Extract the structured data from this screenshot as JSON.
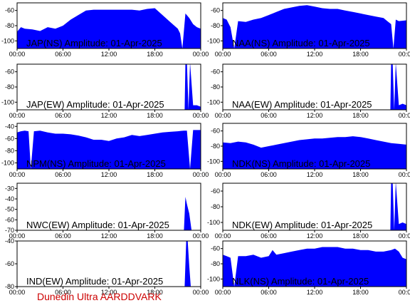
{
  "footer": {
    "label": "Dunedin Ultra AARDDVARK",
    "color": "#cc0000"
  },
  "colors": {
    "fill": "#0000ff",
    "axis": "#000000",
    "background": "#ffffff"
  },
  "x_ticks": [
    "00:00",
    "06:00",
    "12:00",
    "18:00",
    "00:00"
  ],
  "chart_data": [
    {
      "type": "area",
      "title": "JAP(NS) Amplitude: 01-Apr-2025",
      "xlim": [
        "00:00",
        "24:00"
      ],
      "ylim": [
        -110,
        -50
      ],
      "y_ticks": [
        -60,
        -80,
        -100
      ],
      "x_hours": [
        0,
        0.5,
        1,
        2,
        3,
        4,
        5,
        6,
        7,
        8,
        9,
        10,
        11,
        12,
        13,
        14,
        15,
        16,
        17,
        18,
        19,
        20,
        21,
        21.3,
        21.6,
        22,
        22.5,
        23,
        23.5,
        24
      ],
      "values": [
        -88,
        -82,
        -84,
        -85,
        -87,
        -82,
        -84,
        -80,
        -72,
        -66,
        -60,
        -59,
        -59,
        -59,
        -59,
        -59,
        -59,
        -60,
        -58,
        -57,
        -66,
        -75,
        -84,
        -90,
        -110,
        -64,
        -70,
        -78,
        -82,
        -84
      ]
    },
    {
      "type": "area",
      "title": "NAA(NS) Amplitude: 01-Apr-2025",
      "xlim": [
        "00:00",
        "24:00"
      ],
      "ylim": [
        -110,
        -50
      ],
      "y_ticks": [
        -60,
        -80,
        -100
      ],
      "x_hours": [
        0,
        0.5,
        1,
        1.5,
        2,
        3,
        4,
        5,
        6,
        7,
        8,
        9,
        10,
        11,
        12,
        13,
        14,
        15,
        16,
        17,
        18,
        19,
        20,
        21,
        21.5,
        22,
        22.3,
        22.6,
        23,
        24
      ],
      "values": [
        -70,
        -72,
        -82,
        -110,
        -74,
        -75,
        -72,
        -70,
        -66,
        -62,
        -58,
        -56,
        -54,
        -53,
        -55,
        -57,
        -58,
        -58,
        -60,
        -62,
        -64,
        -66,
        -68,
        -70,
        -74,
        -78,
        -110,
        -72,
        -74,
        -73
      ]
    },
    {
      "type": "area",
      "title": "JAP(EW) Amplitude: 01-Apr-2025",
      "xlim": [
        "00:00",
        "24:00"
      ],
      "ylim": [
        -110,
        -50
      ],
      "y_ticks": [
        -60,
        -80,
        -100
      ],
      "x_hours": [
        0,
        21,
        21.5,
        21.9,
        22.0,
        22.2,
        22.4,
        22.6,
        23,
        23.5,
        24
      ],
      "values": [
        -110,
        -110,
        -110,
        -110,
        -48,
        -48,
        -110,
        -48,
        -104,
        -104,
        -106
      ]
    },
    {
      "type": "area",
      "title": "NAA(EW) Amplitude: 01-Apr-2025",
      "xlim": [
        "00:00",
        "24:00"
      ],
      "ylim": [
        -110,
        -50
      ],
      "y_ticks": [
        -60,
        -80,
        -100
      ],
      "x_hours": [
        0,
        21.5,
        21.9,
        22.0,
        22.2,
        22.4,
        22.6,
        23,
        23.5,
        24
      ],
      "values": [
        -110,
        -110,
        -110,
        -48,
        -48,
        -110,
        -48,
        -104,
        -102,
        -104
      ]
    },
    {
      "type": "area",
      "title": "NPM(NS) Amplitude: 01-Apr-2025",
      "xlim": [
        "00:00",
        "24:00"
      ],
      "ylim": [
        -110,
        -35
      ],
      "y_ticks": [
        -40,
        -60,
        -80,
        -100
      ],
      "x_hours": [
        0,
        0.5,
        1,
        1.5,
        1.8,
        2.2,
        3,
        4,
        5,
        6,
        7,
        8,
        9,
        10,
        11,
        12,
        13,
        14,
        15,
        16,
        17,
        18,
        19,
        20,
        21,
        21.8,
        22.2,
        22.6,
        23,
        24
      ],
      "values": [
        -50,
        -48,
        -47,
        -48,
        -110,
        -48,
        -47,
        -50,
        -52,
        -52,
        -53,
        -55,
        -58,
        -62,
        -62,
        -64,
        -60,
        -58,
        -54,
        -56,
        -54,
        -52,
        -50,
        -49,
        -48,
        -47,
        -47,
        -110,
        -46,
        -46
      ]
    },
    {
      "type": "area",
      "title": "NDK(NS) Amplitude: 01-Apr-2025",
      "xlim": [
        "00:00",
        "24:00"
      ],
      "ylim": [
        -110,
        -50
      ],
      "y_ticks": [
        -60,
        -80,
        -100
      ],
      "x_hours": [
        0,
        1,
        2,
        3,
        4,
        5,
        6,
        7,
        8,
        9,
        10,
        11,
        12,
        13,
        14,
        15,
        16,
        17,
        18,
        19,
        20,
        21,
        22,
        23,
        24
      ],
      "values": [
        -75,
        -76,
        -74,
        -75,
        -78,
        -82,
        -80,
        -78,
        -76,
        -74,
        -72,
        -71,
        -70,
        -70,
        -69,
        -68,
        -68,
        -67,
        -68,
        -70,
        -72,
        -74,
        -76,
        -77,
        -78
      ]
    },
    {
      "type": "area",
      "title": "NWC(EW) Amplitude: 01-Apr-2025",
      "xlim": [
        "00:00",
        "24:00"
      ],
      "ylim": [
        -70,
        -25
      ],
      "y_ticks": [
        -30,
        -40,
        -50,
        -60,
        -70
      ],
      "x_hours": [
        0,
        21,
        21.8,
        22.0,
        22.2,
        22.5,
        22.8,
        23,
        24
      ],
      "values": [
        -70,
        -70,
        -70,
        -38,
        -45,
        -54,
        -70,
        -70,
        -70
      ]
    },
    {
      "type": "area",
      "title": "NDK(EW) Amplitude: 01-Apr-2025",
      "xlim": [
        "00:00",
        "24:00"
      ],
      "ylim": [
        -110,
        -50
      ],
      "y_ticks": [
        -60,
        -80,
        -100
      ],
      "x_hours": [
        0,
        21.5,
        21.9,
        22.0,
        22.2,
        22.4,
        22.6,
        23,
        23.5,
        24
      ],
      "values": [
        -110,
        -110,
        -110,
        -48,
        -48,
        -110,
        -48,
        -102,
        -100,
        -102
      ]
    },
    {
      "type": "area",
      "title": "IND(EW) Amplitude: 01-Apr-2025",
      "xlim": [
        "00:00",
        "24:00"
      ],
      "ylim": [
        -80,
        -40
      ],
      "y_ticks": [
        -40,
        -60,
        -80
      ],
      "x_hours": [
        0,
        21,
        21.9,
        22.1,
        22.3,
        22.5,
        22.7,
        24
      ],
      "values": [
        -80,
        -80,
        -80,
        -40,
        -40,
        -62,
        -80,
        -80
      ]
    },
    {
      "type": "area",
      "title": "NLK(NS) Amplitude: 01-Apr-2025",
      "xlim": [
        "00:00",
        "24:00"
      ],
      "ylim": [
        -110,
        -50
      ],
      "y_ticks": [
        -60,
        -80,
        -100
      ],
      "x_hours": [
        0,
        0.5,
        1,
        1.5,
        2,
        3,
        4,
        5,
        6,
        6.5,
        7,
        8,
        9,
        10,
        11,
        12,
        13,
        14,
        15,
        16,
        17,
        18,
        19,
        20,
        21,
        22,
        22.5,
        23,
        23.5,
        24
      ],
      "values": [
        -68,
        -70,
        -72,
        -110,
        -70,
        -70,
        -68,
        -72,
        -70,
        -62,
        -68,
        -66,
        -64,
        -62,
        -60,
        -60,
        -58,
        -58,
        -58,
        -60,
        -60,
        -62,
        -62,
        -64,
        -64,
        -62,
        -60,
        -64,
        -72,
        -74
      ]
    }
  ]
}
